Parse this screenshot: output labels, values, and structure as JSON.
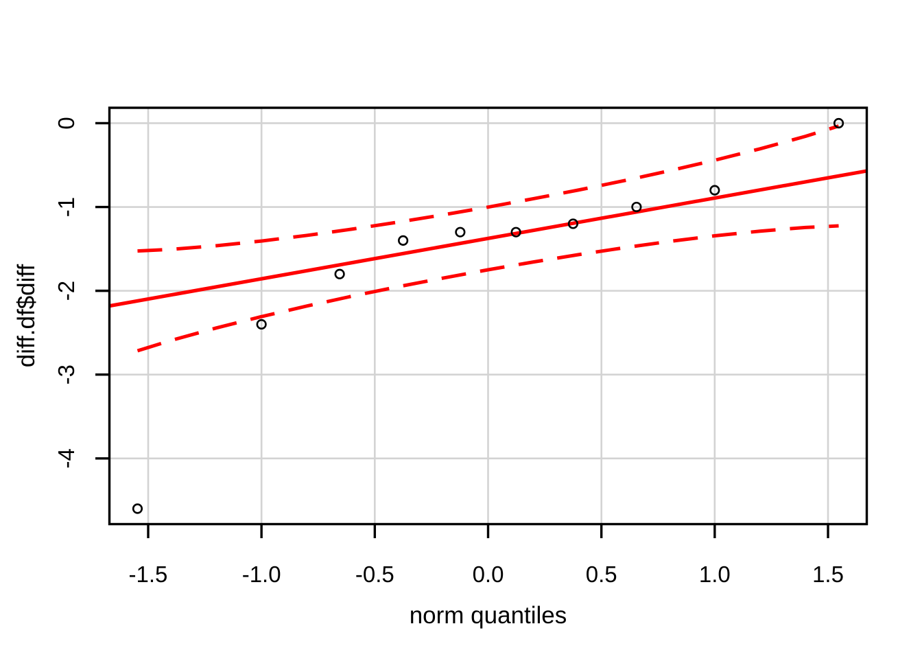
{
  "figure": {
    "background_color": "#FFFFFF"
  },
  "chart_data": {
    "type": "scatter",
    "subtype": "qq-plot",
    "title": "",
    "xlabel": "norm quantiles",
    "ylabel": "diff.df$diff",
    "xlim": [
      -1.671,
      1.671
    ],
    "ylim": [
      -4.784,
      0.184
    ],
    "grid": true,
    "legend_position": "none",
    "grid_color": "#D3D3D3",
    "accent_color": "#FF0000",
    "point_color": "#000000",
    "x_ticks": {
      "values": [
        -1.5,
        -1.0,
        -0.5,
        0.0,
        0.5,
        1.0,
        1.5
      ],
      "labels": [
        "-1.5",
        "-1.0",
        "-0.5",
        "0.0",
        "0.5",
        "1.0",
        "1.5"
      ]
    },
    "y_ticks": {
      "values": [
        0,
        -1,
        -2,
        -3,
        -4
      ],
      "labels": [
        "0",
        "-1",
        "-2",
        "-3",
        "-4"
      ]
    },
    "series": [
      {
        "name": "sample-points",
        "kind": "points",
        "marker": "open-circle",
        "color": "#000000",
        "x": [
          -1.547,
          -1.0,
          -0.655,
          -0.375,
          -0.123,
          0.123,
          0.375,
          0.655,
          1.0,
          1.547
        ],
        "y": [
          -4.6,
          -2.4,
          -1.8,
          -1.4,
          -1.3,
          -1.3,
          -1.2,
          -1.0,
          -0.8,
          0.0
        ]
      },
      {
        "name": "qq-reference-line",
        "kind": "straight-line",
        "style": "solid",
        "color": "#FF0000",
        "slope": 0.482,
        "intercept": -1.375
      },
      {
        "name": "confidence-envelope-upper",
        "kind": "curve",
        "style": "dashed",
        "color": "#FF0000",
        "x": [
          -1.547,
          -1.4,
          -1.2,
          -1.0,
          -0.8,
          -0.6,
          -0.4,
          -0.2,
          0.0,
          0.2,
          0.4,
          0.6,
          0.8,
          1.0,
          1.2,
          1.4,
          1.547
        ],
        "y": [
          -1.525,
          -1.506,
          -1.462,
          -1.406,
          -1.339,
          -1.264,
          -1.182,
          -1.094,
          -1.001,
          -0.901,
          -0.797,
          -0.686,
          -0.568,
          -0.442,
          -0.306,
          -0.157,
          -0.034
        ]
      },
      {
        "name": "confidence-envelope-lower",
        "kind": "curve",
        "style": "dashed",
        "color": "#FF0000",
        "x": [
          -1.547,
          -1.4,
          -1.2,
          -1.0,
          -0.8,
          -0.6,
          -0.4,
          -0.2,
          0.0,
          0.2,
          0.4,
          0.6,
          0.8,
          1.0,
          1.2,
          1.4,
          1.547
        ],
        "y": [
          -2.716,
          -2.593,
          -2.444,
          -2.308,
          -2.182,
          -2.064,
          -1.953,
          -1.849,
          -1.749,
          -1.656,
          -1.568,
          -1.486,
          -1.411,
          -1.344,
          -1.288,
          -1.244,
          -1.225
        ]
      }
    ]
  }
}
